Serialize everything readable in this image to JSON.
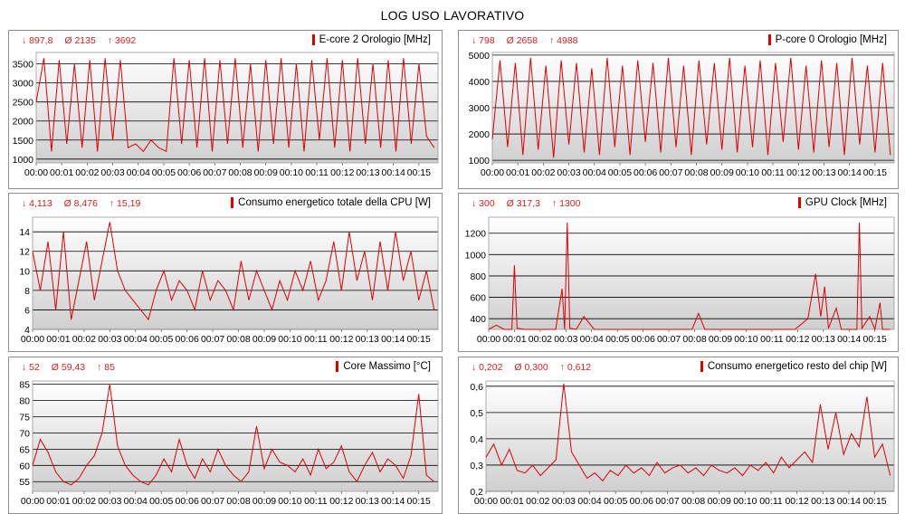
{
  "title": "LOG USO LAVORATIVO",
  "time_ticks": [
    "00:00",
    "00:01",
    "00:02",
    "00:03",
    "00:04",
    "00:05",
    "00:06",
    "00:07",
    "00:08",
    "00:09",
    "00:10",
    "00:11",
    "00:12",
    "00:13",
    "00:14",
    "00:15"
  ],
  "colors": {
    "series": "#e00000",
    "stats": "#d61e1e",
    "grid": "#000000",
    "frame": "#8e8e8e"
  },
  "chart_data": [
    {
      "type": "line",
      "title": "E-core 2 Orologio [MHz]",
      "stats": {
        "min": "↓ 897,8",
        "avg": "Ø 2135",
        "max": "↑ 3692"
      },
      "ylim": [
        900,
        3800
      ],
      "yticks": [
        1000,
        1500,
        2000,
        2500,
        3000,
        3500
      ],
      "ytick_labels": [
        "1000",
        "1500",
        "2000",
        "2500",
        "3000",
        "3500"
      ],
      "x_minutes": [
        0,
        0.3,
        0.6,
        0.9,
        1.2,
        1.5,
        1.8,
        2.1,
        2.4,
        2.7,
        3.0,
        3.3,
        3.6,
        3.9,
        4.2,
        4.5,
        4.8,
        5.1,
        5.4,
        5.7,
        6.0,
        6.3,
        6.6,
        6.9,
        7.2,
        7.5,
        7.8,
        8.1,
        8.4,
        8.7,
        9.0,
        9.3,
        9.6,
        9.9,
        10.2,
        10.5,
        10.8,
        11.1,
        11.4,
        11.7,
        12.0,
        12.3,
        12.6,
        12.9,
        13.2,
        13.5,
        13.8,
        14.1,
        14.4,
        14.7,
        15.0,
        15.3,
        15.6
      ],
      "values": [
        2500,
        3650,
        1200,
        3600,
        1400,
        3500,
        1300,
        3600,
        1200,
        3650,
        1500,
        3600,
        1300,
        1400,
        1200,
        1500,
        1300,
        1200,
        3650,
        1400,
        3600,
        1300,
        3650,
        1200,
        3600,
        1400,
        3650,
        1300,
        3500,
        1200,
        3600,
        1400,
        3650,
        1300,
        3500,
        1200,
        3600,
        1500,
        3650,
        1300,
        3600,
        1200,
        3650,
        1400,
        3500,
        1300,
        3600,
        1200,
        3650,
        1400,
        3500,
        1600,
        1300
      ]
    },
    {
      "type": "line",
      "title": "P-core 0 Orologio [MHz]",
      "stats": {
        "min": "↓ 798",
        "avg": "Ø 2658",
        "max": "↑ 4988"
      },
      "ylim": [
        900,
        5100
      ],
      "yticks": [
        1000,
        2000,
        3000,
        4000,
        5000
      ],
      "ytick_labels": [
        "1000",
        "2000",
        "3000",
        "4000",
        "5000"
      ],
      "x_minutes": [
        0,
        0.3,
        0.6,
        0.9,
        1.2,
        1.5,
        1.8,
        2.1,
        2.4,
        2.7,
        3.0,
        3.3,
        3.6,
        3.9,
        4.2,
        4.5,
        4.8,
        5.1,
        5.4,
        5.7,
        6.0,
        6.3,
        6.6,
        6.9,
        7.2,
        7.5,
        7.8,
        8.1,
        8.4,
        8.7,
        9.0,
        9.3,
        9.6,
        9.9,
        10.2,
        10.5,
        10.8,
        11.1,
        11.4,
        11.7,
        12.0,
        12.3,
        12.6,
        12.9,
        13.2,
        13.5,
        13.8,
        14.1,
        14.4,
        14.7,
        15.0,
        15.3,
        15.6
      ],
      "values": [
        1800,
        4800,
        1500,
        4700,
        1200,
        4900,
        1400,
        4600,
        1100,
        4800,
        1600,
        4700,
        1300,
        4500,
        1200,
        4900,
        1500,
        4600,
        1200,
        4800,
        1700,
        4700,
        1300,
        4900,
        1500,
        4600,
        1200,
        4800,
        1600,
        4700,
        1400,
        4900,
        1300,
        4600,
        1500,
        4800,
        1200,
        4700,
        1700,
        4900,
        1400,
        4600,
        1300,
        4800,
        1500,
        4700,
        1200,
        4900,
        1600,
        4600,
        1300,
        4700,
        1200
      ]
    },
    {
      "type": "line",
      "title": "Consumo energetico totale della CPU [W]",
      "stats": {
        "min": "↓ 4,113",
        "avg": "Ø 8,476",
        "max": "↑ 15,19"
      },
      "ylim": [
        4,
        15.5
      ],
      "yticks": [
        4,
        6,
        8,
        10,
        12,
        14
      ],
      "ytick_labels": [
        "4",
        "6",
        "8",
        "10",
        "12",
        "14"
      ],
      "x_minutes": [
        0,
        0.3,
        0.6,
        0.9,
        1.2,
        1.5,
        1.8,
        2.1,
        2.4,
        2.7,
        3.0,
        3.3,
        3.6,
        3.9,
        4.2,
        4.5,
        4.8,
        5.1,
        5.4,
        5.7,
        6.0,
        6.3,
        6.6,
        6.9,
        7.2,
        7.5,
        7.8,
        8.1,
        8.4,
        8.7,
        9.0,
        9.3,
        9.6,
        9.9,
        10.2,
        10.5,
        10.8,
        11.1,
        11.4,
        11.7,
        12.0,
        12.3,
        12.6,
        12.9,
        13.2,
        13.5,
        13.8,
        14.1,
        14.4,
        14.7,
        15.0,
        15.3,
        15.6
      ],
      "values": [
        12,
        8,
        13,
        6,
        14,
        5,
        9,
        13,
        7,
        11,
        15,
        10,
        8,
        7,
        6,
        5,
        8,
        10,
        7,
        9,
        8,
        6,
        10,
        7,
        9,
        8,
        6,
        11,
        7,
        10,
        8,
        6,
        9,
        7,
        10,
        8,
        11,
        7,
        9,
        13,
        8,
        14,
        9,
        12,
        7,
        13,
        8,
        14,
        9,
        12,
        7,
        10,
        6
      ]
    },
    {
      "type": "line",
      "title": "GPU Clock [MHz]",
      "stats": {
        "min": "↓ 300",
        "avg": "Ø 317,3",
        "max": "↑ 1300"
      },
      "ylim": [
        300,
        1350
      ],
      "yticks": [
        400,
        600,
        800,
        1000,
        1200
      ],
      "ytick_labels": [
        "400",
        "600",
        "800",
        "1000",
        "1200"
      ],
      "x_minutes": [
        0,
        0.3,
        0.6,
        0.9,
        1.0,
        1.1,
        1.4,
        1.8,
        2.2,
        2.6,
        2.85,
        2.95,
        3.05,
        3.15,
        3.4,
        3.7,
        4.1,
        5,
        6,
        7,
        7.9,
        8.15,
        8.4,
        9,
        10,
        11,
        11.9,
        12.4,
        12.7,
        12.9,
        13.05,
        13.2,
        13.5,
        13.7,
        14.0,
        14.3,
        14.4,
        14.5,
        14.8,
        15.0,
        15.2,
        15.3,
        15.6
      ],
      "values": [
        300,
        340,
        300,
        300,
        900,
        310,
        300,
        300,
        300,
        300,
        680,
        300,
        1300,
        310,
        300,
        420,
        300,
        300,
        300,
        300,
        300,
        450,
        300,
        300,
        300,
        300,
        300,
        400,
        820,
        420,
        700,
        310,
        500,
        300,
        300,
        300,
        1300,
        310,
        420,
        300,
        550,
        300,
        300
      ]
    },
    {
      "type": "line",
      "title": "Core Massimo [°C]",
      "stats": {
        "min": "↓ 52",
        "avg": "Ø 59,43",
        "max": "↑ 85"
      },
      "ylim": [
        52,
        86
      ],
      "yticks": [
        55,
        60,
        65,
        70,
        75,
        80,
        85
      ],
      "ytick_labels": [
        "55",
        "60",
        "65",
        "70",
        "75",
        "80",
        "85"
      ],
      "x_minutes": [
        0,
        0.3,
        0.6,
        0.9,
        1.2,
        1.5,
        1.8,
        2.1,
        2.4,
        2.7,
        3.0,
        3.3,
        3.6,
        3.9,
        4.2,
        4.5,
        4.8,
        5.1,
        5.4,
        5.7,
        6.0,
        6.3,
        6.6,
        6.9,
        7.2,
        7.5,
        7.8,
        8.1,
        8.4,
        8.7,
        9.0,
        9.3,
        9.6,
        9.9,
        10.2,
        10.5,
        10.8,
        11.1,
        11.4,
        11.7,
        12.0,
        12.3,
        12.6,
        12.9,
        13.2,
        13.5,
        13.8,
        14.1,
        14.4,
        14.7,
        15.0,
        15.3,
        15.6
      ],
      "values": [
        60,
        68,
        64,
        58,
        55,
        54,
        56,
        60,
        63,
        70,
        85,
        66,
        60,
        57,
        55,
        54,
        57,
        62,
        58,
        68,
        60,
        56,
        62,
        58,
        65,
        60,
        57,
        55,
        58,
        72,
        59,
        65,
        61,
        60,
        58,
        62,
        57,
        65,
        59,
        61,
        66,
        58,
        55,
        60,
        64,
        58,
        62,
        60,
        56,
        63,
        82,
        57,
        55
      ]
    },
    {
      "type": "line",
      "title": "Consumo energetico resto del chip [W]",
      "stats": {
        "min": "↓ 0,202",
        "avg": "Ø 0,300",
        "max": "↑ 0,612"
      },
      "ylim": [
        0.2,
        0.62
      ],
      "yticks": [
        0.2,
        0.3,
        0.4,
        0.5,
        0.6
      ],
      "ytick_labels": [
        "0,2",
        "0,3",
        "0,4",
        "0,5",
        "0,6"
      ],
      "x_minutes": [
        0,
        0.3,
        0.6,
        0.9,
        1.2,
        1.5,
        1.8,
        2.1,
        2.4,
        2.7,
        3.0,
        3.3,
        3.6,
        3.9,
        4.2,
        4.5,
        4.8,
        5.1,
        5.4,
        5.7,
        6.0,
        6.3,
        6.6,
        6.9,
        7.2,
        7.5,
        7.8,
        8.1,
        8.4,
        8.7,
        9.0,
        9.3,
        9.6,
        9.9,
        10.2,
        10.5,
        10.8,
        11.1,
        11.4,
        11.7,
        12.0,
        12.3,
        12.6,
        12.9,
        13.2,
        13.5,
        13.8,
        14.1,
        14.4,
        14.7,
        15.0,
        15.3,
        15.6
      ],
      "values": [
        0.33,
        0.38,
        0.3,
        0.36,
        0.28,
        0.27,
        0.3,
        0.26,
        0.29,
        0.32,
        0.61,
        0.35,
        0.3,
        0.25,
        0.27,
        0.24,
        0.28,
        0.26,
        0.3,
        0.27,
        0.29,
        0.26,
        0.31,
        0.27,
        0.29,
        0.3,
        0.27,
        0.29,
        0.26,
        0.3,
        0.28,
        0.27,
        0.29,
        0.26,
        0.3,
        0.28,
        0.31,
        0.27,
        0.33,
        0.29,
        0.32,
        0.35,
        0.31,
        0.53,
        0.36,
        0.5,
        0.34,
        0.42,
        0.37,
        0.56,
        0.33,
        0.38,
        0.26
      ]
    }
  ]
}
